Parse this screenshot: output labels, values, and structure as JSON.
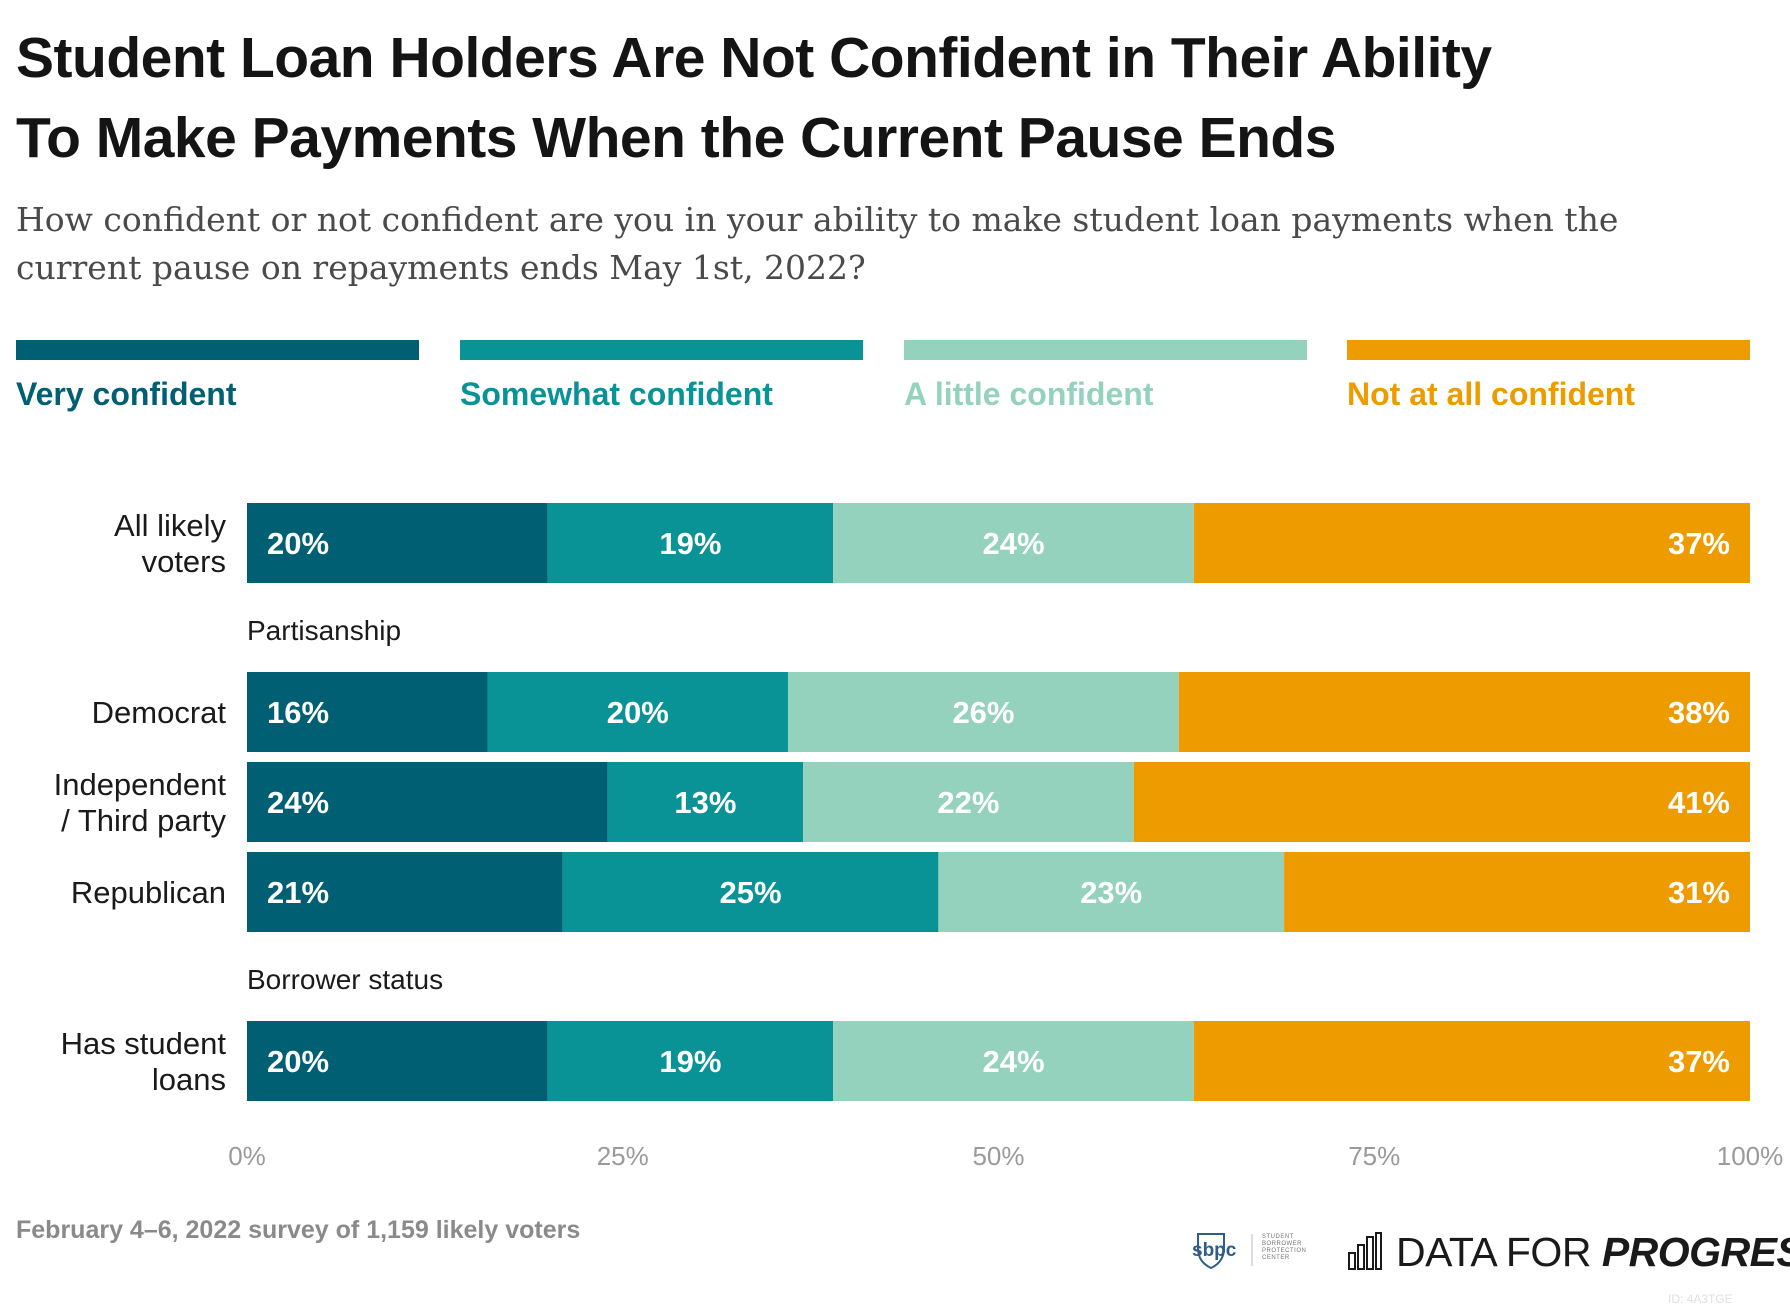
{
  "title_line1": "Student Loan Holders Are Not Confident in Their Ability",
  "title_line2": "To Make Payments When the Current Pause Ends",
  "subtitle_line1": "How confident or not confident are you in your ability to make student loan payments when the",
  "subtitle_line2": "current pause on repayments ends May 1st, 2022?",
  "footer_note": "February 4–6, 2022 survey of 1,159 likely voters",
  "logos": {
    "sbpc_mark": "sbpc",
    "sbpc_text": "STUDENT BORROWER PROTECTION CENTER",
    "dfp_light": "DATA FOR ",
    "dfp_bold": "PROGRESS"
  },
  "id_tag": "ID: 4A3TGE",
  "colors": {
    "very": "#005f73",
    "somewhat": "#0a9396",
    "little": "#94d2bd",
    "not": "#ee9b00",
    "axis_text": "#9a9a9a"
  },
  "chart_data": {
    "type": "bar",
    "orientation": "horizontal",
    "stacked": true,
    "xlim": [
      0,
      100
    ],
    "x_ticks": [
      "0%",
      "25%",
      "50%",
      "75%",
      "100%"
    ],
    "series_names": [
      "Very confident",
      "Somewhat confident",
      "A little confident",
      "Not at all confident"
    ],
    "groups": [
      {
        "heading": "",
        "rows": [
          {
            "label": [
              "All likely",
              "voters"
            ],
            "values": [
              20,
              19,
              24,
              37
            ]
          }
        ]
      },
      {
        "heading": "Partisanship",
        "rows": [
          {
            "label": [
              "Democrat"
            ],
            "values": [
              16,
              20,
              26,
              38
            ]
          },
          {
            "label": [
              "Independent",
              "/ Third party"
            ],
            "values": [
              24,
              13,
              22,
              41
            ]
          },
          {
            "label": [
              "Republican"
            ],
            "values": [
              21,
              25,
              23,
              31
            ]
          }
        ]
      },
      {
        "heading": "Borrower status",
        "rows": [
          {
            "label": [
              "Has student",
              "loans"
            ],
            "values": [
              20,
              19,
              24,
              37
            ]
          }
        ]
      }
    ]
  }
}
